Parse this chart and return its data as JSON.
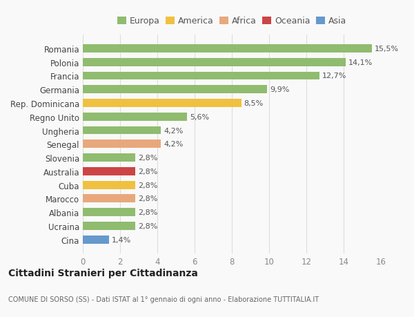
{
  "categories": [
    "Cina",
    "Ucraina",
    "Albania",
    "Marocco",
    "Cuba",
    "Australia",
    "Slovenia",
    "Senegal",
    "Ungheria",
    "Regno Unito",
    "Rep. Dominicana",
    "Germania",
    "Francia",
    "Polonia",
    "Romania"
  ],
  "values": [
    1.4,
    2.8,
    2.8,
    2.8,
    2.8,
    2.8,
    2.8,
    4.2,
    4.2,
    5.6,
    8.5,
    9.9,
    12.7,
    14.1,
    15.5
  ],
  "colors": [
    "#6699cc",
    "#8fbc6f",
    "#8fbc6f",
    "#e8a87c",
    "#f0c040",
    "#cc4444",
    "#8fbc6f",
    "#e8a87c",
    "#8fbc6f",
    "#8fbc6f",
    "#f0c040",
    "#8fbc6f",
    "#8fbc6f",
    "#8fbc6f",
    "#8fbc6f"
  ],
  "labels": [
    "1,4%",
    "2,8%",
    "2,8%",
    "2,8%",
    "2,8%",
    "2,8%",
    "2,8%",
    "4,2%",
    "4,2%",
    "5,6%",
    "8,5%",
    "9,9%",
    "12,7%",
    "14,1%",
    "15,5%"
  ],
  "legend_labels": [
    "Europa",
    "America",
    "Africa",
    "Oceania",
    "Asia"
  ],
  "legend_colors": [
    "#8fbc6f",
    "#f0c040",
    "#e8a87c",
    "#cc4444",
    "#6699cc"
  ],
  "xlim": [
    0,
    16
  ],
  "xticks": [
    0,
    2,
    4,
    6,
    8,
    10,
    12,
    14,
    16
  ],
  "title": "Cittadini Stranieri per Cittadinanza",
  "subtitle": "COMUNE DI SORSO (SS) - Dati ISTAT al 1° gennaio di ogni anno - Elaborazione TUTTITALIA.IT",
  "bg_color": "#f9f9f9",
  "bar_height": 0.6,
  "grid_color": "#dddddd"
}
